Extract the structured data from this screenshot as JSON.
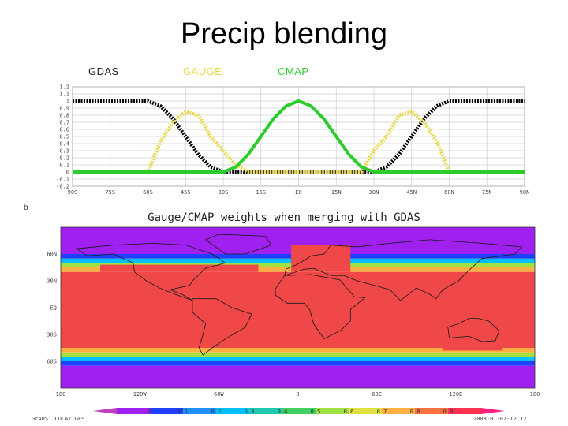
{
  "slide": {
    "title": "Precip blending"
  },
  "chart_data": [
    {
      "type": "line",
      "x": [
        -90,
        -85,
        -80,
        -75,
        -70,
        -65,
        -60,
        -55,
        -50,
        -45,
        -40,
        -35,
        -30,
        -25,
        -20,
        -15,
        -10,
        -5,
        0,
        5,
        10,
        15,
        20,
        25,
        30,
        35,
        40,
        45,
        50,
        55,
        60,
        65,
        70,
        75,
        80,
        85,
        90
      ],
      "xlabel": "",
      "ylabel": "",
      "xlim": [
        -90,
        90
      ],
      "ylim": [
        -0.2,
        1.2
      ],
      "xticks": [
        -90,
        -75,
        -60,
        -45,
        -30,
        -15,
        0,
        15,
        30,
        45,
        60,
        75,
        90
      ],
      "xtick_labels": [
        "90S",
        "75S",
        "60S",
        "45S",
        "30S",
        "15S",
        "EQ",
        "15N",
        "30N",
        "45N",
        "60N",
        "75N",
        "90N"
      ],
      "yticks": [
        -0.2,
        -0.1,
        0,
        0.1,
        0.2,
        0.3,
        0.4,
        0.5,
        0.6,
        0.7,
        0.8,
        0.9,
        1,
        1.1,
        1.2
      ],
      "ytick_labels": [
        "-0.2",
        "-0.1",
        "0",
        "0.1",
        "0.2",
        "0.3",
        "0.4",
        "0.5",
        "0.6",
        "0.7",
        "0.8",
        "0.9",
        "1",
        "1.1",
        "1.2"
      ],
      "grid": true,
      "legend": "top",
      "series": [
        {
          "name": "GDAS",
          "color": "#000000",
          "values": [
            1,
            1,
            1,
            1,
            1,
            1,
            1,
            0.93,
            0.75,
            0.5,
            0.25,
            0.07,
            0,
            0,
            0,
            0,
            0,
            0,
            0,
            0,
            0,
            0,
            0,
            0,
            0,
            0.07,
            0.25,
            0.5,
            0.75,
            0.93,
            1,
            1,
            1,
            1,
            1,
            1,
            1
          ]
        },
        {
          "name": "GAUGE",
          "color": "#e8d84a",
          "values": [
            0,
            0,
            0,
            0,
            0,
            0,
            0,
            0.43,
            0.7,
            0.85,
            0.8,
            0.5,
            0.3,
            0.1,
            0,
            0,
            0,
            0,
            0,
            0,
            0,
            0,
            0,
            0,
            0.3,
            0.5,
            0.8,
            0.85,
            0.7,
            0.43,
            0,
            0,
            0,
            0,
            0,
            0,
            0
          ]
        },
        {
          "name": "CMAP",
          "color": "#2ccc2c",
          "values": [
            0,
            0,
            0,
            0,
            0,
            0,
            0,
            0,
            0,
            0,
            0,
            0,
            0,
            0.07,
            0.25,
            0.5,
            0.75,
            0.93,
            1,
            0.93,
            0.75,
            0.5,
            0.25,
            0.07,
            0,
            0,
            0,
            0,
            0,
            0,
            0,
            0,
            0,
            0,
            0,
            0,
            0
          ]
        }
      ]
    },
    {
      "type": "heatmap",
      "title": "Gauge/CMAP weights when merging with GDAS",
      "panel_label": "b",
      "xticks": [
        -180,
        -120,
        -60,
        0,
        60,
        120,
        180
      ],
      "xtick_labels": [
        "180",
        "120W",
        "60W",
        "0",
        "60E",
        "120E",
        "180"
      ],
      "yticks": [
        60,
        30,
        0,
        -30,
        -60
      ],
      "ytick_labels": [
        "60N",
        "30N",
        "EQ",
        "30S",
        "60S"
      ],
      "zones": [
        {
          "lat": [
            -90,
            -65
          ],
          "value": 0
        },
        {
          "lat": [
            -65,
            -60
          ],
          "value": 0.1
        },
        {
          "lat": [
            -60,
            -55
          ],
          "value": 0.3
        },
        {
          "lat": [
            -55,
            -50
          ],
          "value": 0.6
        },
        {
          "lat": [
            -50,
            -45
          ],
          "value": 0.8
        },
        {
          "lat": [
            -45,
            40
          ],
          "value": 0.9
        },
        {
          "lat": [
            40,
            45
          ],
          "value": 0.8
        },
        {
          "lat": [
            45,
            50
          ],
          "value": 0.6
        },
        {
          "lat": [
            50,
            55
          ],
          "value": 0.3
        },
        {
          "lat": [
            55,
            60
          ],
          "value": 0.1
        },
        {
          "lat": [
            60,
            90
          ],
          "value": 0
        }
      ],
      "boxes": [
        {
          "lon": [
            -150,
            -30
          ],
          "lat": [
            40,
            48
          ],
          "value": 0.9
        },
        {
          "lon": [
            -5,
            40
          ],
          "lat": [
            40,
            70
          ],
          "value": 0.9
        },
        {
          "lon": [
            110,
            155
          ],
          "lat": [
            -48,
            -40
          ],
          "value": 0.9
        }
      ],
      "colorbar": {
        "ticks": [
          "0",
          "0.1",
          "0.2",
          "0.3",
          "0.4",
          "0.5",
          "0.6",
          "0.7",
          "0.8",
          "0.9"
        ],
        "colors": [
          "#a020f0",
          "#2040ff",
          "#1e90ff",
          "#00bfff",
          "#20c8b0",
          "#40d060",
          "#a0e040",
          "#e0e040",
          "#ffb040",
          "#ff7040",
          "#ff3050"
        ]
      }
    }
  ],
  "footer": {
    "left": "GrADS: COLA/IGES",
    "right": "2008-01-07-12:12"
  }
}
